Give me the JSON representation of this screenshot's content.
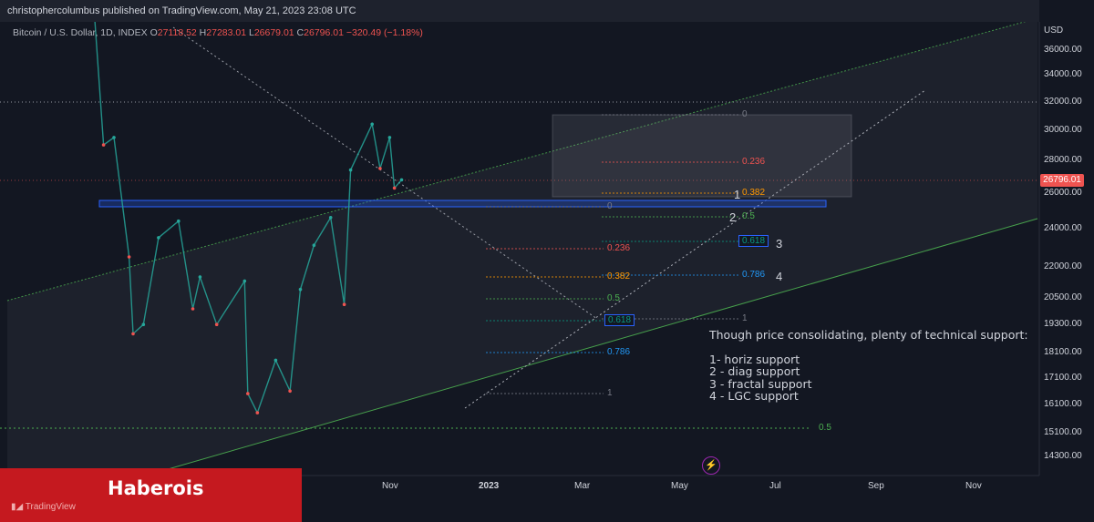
{
  "publisher": "christophercolumbus published on TradingView.com, May 21, 2023 23:08 UTC",
  "ohlc": {
    "symbol": "Bitcoin / U.S. Dollar, 1D, INDEX",
    "o_label": "O",
    "o": "27118.52",
    "h_label": "H",
    "h": "27283.01",
    "l_label": "L",
    "l": "26679.01",
    "c_label": "C",
    "c": "26796.01",
    "change": "−320.49 (−1.18%)"
  },
  "price_axis": {
    "currency": "USD",
    "ticks": [
      "36000.00",
      "34000.00",
      "32000.00",
      "30000.00",
      "28000.00",
      "26000.00",
      "24000.00",
      "22000.00",
      "20500.00",
      "19300.00",
      "18100.00",
      "17100.00",
      "16100.00",
      "15100.00",
      "14300.00"
    ],
    "current_price": "26796.01"
  },
  "time_axis": {
    "ticks": [
      "May",
      "Jul",
      "Sep",
      "Nov",
      "2023",
      "Mar",
      "May",
      "Jul",
      "Sep",
      "Nov"
    ]
  },
  "fib_upper": [
    "0",
    "0.236",
    "0.382",
    "0.5",
    "0.618",
    "0.786",
    "1"
  ],
  "fib_lower": [
    "0",
    "0.236",
    "0.382",
    "0.5",
    "0.618",
    "0.786",
    "1"
  ],
  "fib_far": "0.5",
  "support_numbers": [
    "1",
    "2",
    "3",
    "4"
  ],
  "note_text": "Though price consolidating, plenty of technical support:\n\n1- horiz support\n2 - diag support\n3 - fractal support\n4 - LGC support",
  "banner_name": "Haberois",
  "tv_logo": "TradingView",
  "colors": {
    "background": "#131722",
    "up": "#26a69a",
    "down": "#ef5350",
    "channel": "#4caf50",
    "horizontal_zone": "#2962ff"
  },
  "chart_data": {
    "type": "candlestick",
    "title": "Bitcoin / U.S. Dollar, 1D, INDEX",
    "ylabel": "USD",
    "y_scale": "log",
    "ylim": [
      14000,
      38000
    ],
    "x_ticks": [
      "May",
      "Jul",
      "Sep",
      "Nov",
      "2023",
      "Mar",
      "May",
      "Jul",
      "Sep",
      "Nov"
    ],
    "close_path": [
      {
        "date": "2022-04-01",
        "close": 46000
      },
      {
        "date": "2022-05-01",
        "close": 38500
      },
      {
        "date": "2022-05-12",
        "close": 29000
      },
      {
        "date": "2022-05-25",
        "close": 29500
      },
      {
        "date": "2022-06-13",
        "close": 22500
      },
      {
        "date": "2022-06-18",
        "close": 18900
      },
      {
        "date": "2022-07-01",
        "close": 19300
      },
      {
        "date": "2022-07-20",
        "close": 23500
      },
      {
        "date": "2022-08-14",
        "close": 24400
      },
      {
        "date": "2022-09-01",
        "close": 20000
      },
      {
        "date": "2022-09-10",
        "close": 21500
      },
      {
        "date": "2022-10-01",
        "close": 19300
      },
      {
        "date": "2022-11-05",
        "close": 21300
      },
      {
        "date": "2022-11-09",
        "close": 16500
      },
      {
        "date": "2022-11-21",
        "close": 15800
      },
      {
        "date": "2022-12-14",
        "close": 17800
      },
      {
        "date": "2023-01-01",
        "close": 16600
      },
      {
        "date": "2023-01-14",
        "close": 20900
      },
      {
        "date": "2023-01-31",
        "close": 23100
      },
      {
        "date": "2023-02-21",
        "close": 24600
      },
      {
        "date": "2023-03-10",
        "close": 20200
      },
      {
        "date": "2023-03-18",
        "close": 27400
      },
      {
        "date": "2023-04-14",
        "close": 30400
      },
      {
        "date": "2023-04-24",
        "close": 27500
      },
      {
        "date": "2023-05-06",
        "close": 29500
      },
      {
        "date": "2023-05-12",
        "close": 26300
      },
      {
        "date": "2023-05-21",
        "close": 26796.01
      }
    ],
    "last_close": 26796.01,
    "annotations": [
      "horiz support",
      "diag support",
      "fractal support",
      "LGC support"
    ]
  }
}
